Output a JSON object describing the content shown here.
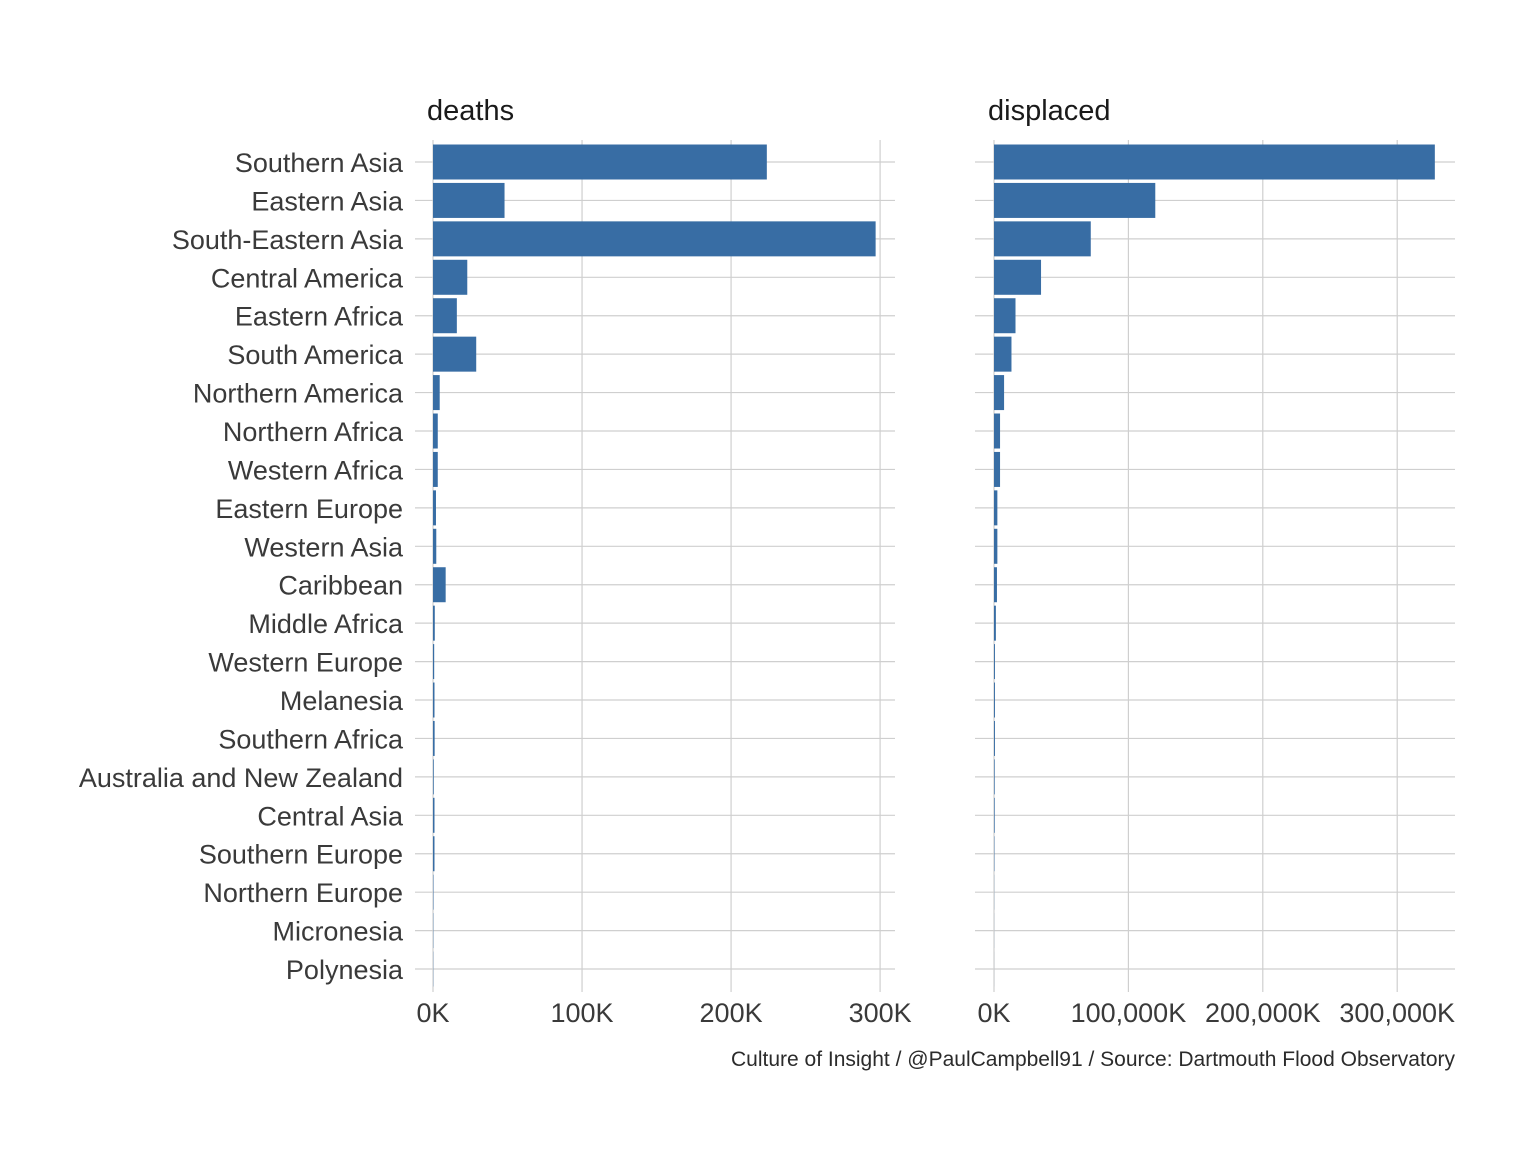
{
  "chart_data": {
    "type": "bar",
    "orientation": "horizontal",
    "categories": [
      "Southern Asia",
      "Eastern Asia",
      "South-Eastern Asia",
      "Central America",
      "Eastern Africa",
      "South America",
      "Northern America",
      "Northern Africa",
      "Western Africa",
      "Eastern Europe",
      "Western Asia",
      "Caribbean",
      "Middle Africa",
      "Western Europe",
      "Melanesia",
      "Southern Africa",
      "Australia and New Zealand",
      "Central Asia",
      "Southern Europe",
      "Northern Europe",
      "Micronesia",
      "Polynesia"
    ],
    "panels": [
      {
        "title": "deaths",
        "xlim": [
          0,
          310000
        ],
        "ticks": [
          0,
          100000,
          200000,
          300000
        ],
        "tick_labels": [
          "0K",
          "100K",
          "200K",
          "300K"
        ],
        "values": [
          224000,
          48000,
          297000,
          23000,
          16000,
          29000,
          4500,
          3200,
          3200,
          2000,
          2200,
          8500,
          1200,
          800,
          1000,
          1100,
          500,
          1000,
          1000,
          300,
          200,
          150
        ]
      },
      {
        "title": "displaced",
        "xlim": [
          0,
          343000000
        ],
        "ticks": [
          0,
          100000000,
          200000000,
          300000000
        ],
        "tick_labels": [
          "0K",
          "100,000K",
          "200,000K",
          "300,000K"
        ],
        "values": [
          328000000,
          120000000,
          72000000,
          35000000,
          16000000,
          13000000,
          7500000,
          4500000,
          4500000,
          2500000,
          2500000,
          2200000,
          1400000,
          700000,
          700000,
          700000,
          500000,
          500000,
          300000,
          100000,
          50000,
          30000
        ]
      }
    ],
    "bar_color": "#386da4",
    "grid": true,
    "caption": "Culture of Insight / @PaulCampbell91 / Source: Dartmouth Flood Observatory"
  }
}
